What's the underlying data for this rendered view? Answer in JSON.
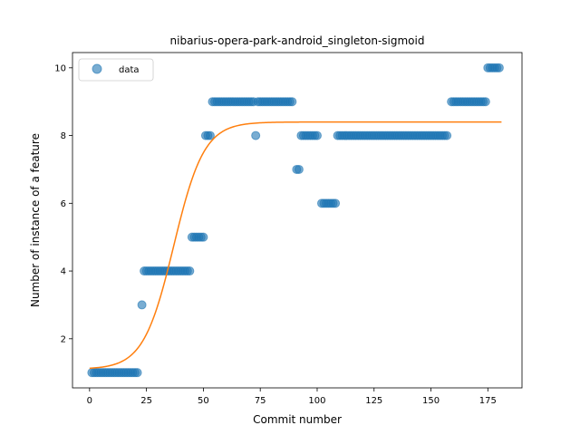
{
  "chart_data": {
    "type": "scatter",
    "title": "nibarius-opera-park-android_singleton-sigmoid",
    "xlabel": "Commit number",
    "ylabel": "Number of instance of a feature",
    "xlim": [
      -7.5,
      190
    ],
    "ylim": [
      0.55,
      10.45
    ],
    "xticks": [
      0,
      25,
      50,
      75,
      100,
      125,
      150,
      175
    ],
    "yticks": [
      2,
      4,
      6,
      8,
      10
    ],
    "grid": false,
    "legend": {
      "placement": "top-left",
      "entries": [
        "data"
      ]
    },
    "colors": {
      "data": "#1f77b4",
      "fit": "#ff7f0e"
    },
    "series": [
      {
        "name": "data",
        "kind": "scatter",
        "points": [
          [
            1,
            1
          ],
          [
            2,
            1
          ],
          [
            3,
            1
          ],
          [
            4,
            1
          ],
          [
            5,
            1
          ],
          [
            6,
            1
          ],
          [
            7,
            1
          ],
          [
            8,
            1
          ],
          [
            9,
            1
          ],
          [
            10,
            1
          ],
          [
            11,
            1
          ],
          [
            12,
            1
          ],
          [
            13,
            1
          ],
          [
            14,
            1
          ],
          [
            15,
            1
          ],
          [
            16,
            1
          ],
          [
            17,
            1
          ],
          [
            18,
            1
          ],
          [
            19,
            1
          ],
          [
            20,
            1
          ],
          [
            21,
            1
          ],
          [
            23,
            3
          ],
          [
            24,
            4
          ],
          [
            25,
            4
          ],
          [
            26,
            4
          ],
          [
            27,
            4
          ],
          [
            28,
            4
          ],
          [
            29,
            4
          ],
          [
            30,
            4
          ],
          [
            31,
            4
          ],
          [
            32,
            4
          ],
          [
            33,
            4
          ],
          [
            34,
            4
          ],
          [
            35,
            4
          ],
          [
            36,
            4
          ],
          [
            37,
            4
          ],
          [
            38,
            4
          ],
          [
            39,
            4
          ],
          [
            40,
            4
          ],
          [
            41,
            4
          ],
          [
            42,
            4
          ],
          [
            43,
            4
          ],
          [
            44,
            4
          ],
          [
            45,
            5
          ],
          [
            46,
            5
          ],
          [
            47,
            5
          ],
          [
            48,
            5
          ],
          [
            49,
            5
          ],
          [
            50,
            5
          ],
          [
            51,
            8
          ],
          [
            52,
            8
          ],
          [
            53,
            8
          ],
          [
            54,
            9
          ],
          [
            55,
            9
          ],
          [
            56,
            9
          ],
          [
            57,
            9
          ],
          [
            58,
            9
          ],
          [
            59,
            9
          ],
          [
            60,
            9
          ],
          [
            61,
            9
          ],
          [
            62,
            9
          ],
          [
            63,
            9
          ],
          [
            64,
            9
          ],
          [
            65,
            9
          ],
          [
            66,
            9
          ],
          [
            67,
            9
          ],
          [
            68,
            9
          ],
          [
            69,
            9
          ],
          [
            70,
            9
          ],
          [
            71,
            9
          ],
          [
            72,
            9
          ],
          [
            73,
            8
          ],
          [
            74,
            9
          ],
          [
            75,
            9
          ],
          [
            76,
            9
          ],
          [
            77,
            9
          ],
          [
            78,
            9
          ],
          [
            79,
            9
          ],
          [
            80,
            9
          ],
          [
            81,
            9
          ],
          [
            82,
            9
          ],
          [
            83,
            9
          ],
          [
            84,
            9
          ],
          [
            85,
            9
          ],
          [
            86,
            9
          ],
          [
            87,
            9
          ],
          [
            88,
            9
          ],
          [
            89,
            9
          ],
          [
            91,
            7
          ],
          [
            92,
            7
          ],
          [
            93,
            8
          ],
          [
            94,
            8
          ],
          [
            95,
            8
          ],
          [
            96,
            8
          ],
          [
            97,
            8
          ],
          [
            98,
            8
          ],
          [
            99,
            8
          ],
          [
            100,
            8
          ],
          [
            102,
            6
          ],
          [
            103,
            6
          ],
          [
            104,
            6
          ],
          [
            105,
            6
          ],
          [
            106,
            6
          ],
          [
            107,
            6
          ],
          [
            108,
            6
          ],
          [
            109,
            8
          ],
          [
            110,
            8
          ],
          [
            111,
            8
          ],
          [
            112,
            8
          ],
          [
            113,
            8
          ],
          [
            114,
            8
          ],
          [
            115,
            8
          ],
          [
            116,
            8
          ],
          [
            117,
            8
          ],
          [
            118,
            8
          ],
          [
            119,
            8
          ],
          [
            120,
            8
          ],
          [
            121,
            8
          ],
          [
            122,
            8
          ],
          [
            123,
            8
          ],
          [
            124,
            8
          ],
          [
            125,
            8
          ],
          [
            126,
            8
          ],
          [
            127,
            8
          ],
          [
            128,
            8
          ],
          [
            129,
            8
          ],
          [
            130,
            8
          ],
          [
            131,
            8
          ],
          [
            132,
            8
          ],
          [
            133,
            8
          ],
          [
            134,
            8
          ],
          [
            135,
            8
          ],
          [
            136,
            8
          ],
          [
            137,
            8
          ],
          [
            138,
            8
          ],
          [
            139,
            8
          ],
          [
            140,
            8
          ],
          [
            141,
            8
          ],
          [
            142,
            8
          ],
          [
            143,
            8
          ],
          [
            144,
            8
          ],
          [
            145,
            8
          ],
          [
            146,
            8
          ],
          [
            147,
            8
          ],
          [
            148,
            8
          ],
          [
            149,
            8
          ],
          [
            150,
            8
          ],
          [
            151,
            8
          ],
          [
            152,
            8
          ],
          [
            153,
            8
          ],
          [
            154,
            8
          ],
          [
            155,
            8
          ],
          [
            156,
            8
          ],
          [
            157,
            8
          ],
          [
            159,
            9
          ],
          [
            160,
            9
          ],
          [
            161,
            9
          ],
          [
            162,
            9
          ],
          [
            163,
            9
          ],
          [
            164,
            9
          ],
          [
            165,
            9
          ],
          [
            166,
            9
          ],
          [
            167,
            9
          ],
          [
            168,
            9
          ],
          [
            169,
            9
          ],
          [
            170,
            9
          ],
          [
            171,
            9
          ],
          [
            172,
            9
          ],
          [
            173,
            9
          ],
          [
            174,
            9
          ],
          [
            175,
            10
          ],
          [
            176,
            10
          ],
          [
            177,
            10
          ],
          [
            178,
            10
          ],
          [
            179,
            10
          ],
          [
            180,
            10
          ]
        ]
      },
      {
        "kind": "line",
        "model": "sigmoid",
        "params": {
          "lower": 1.1,
          "upper": 8.4,
          "midpoint": 37,
          "rate": 0.15
        },
        "x_range": [
          0,
          181
        ]
      }
    ]
  }
}
